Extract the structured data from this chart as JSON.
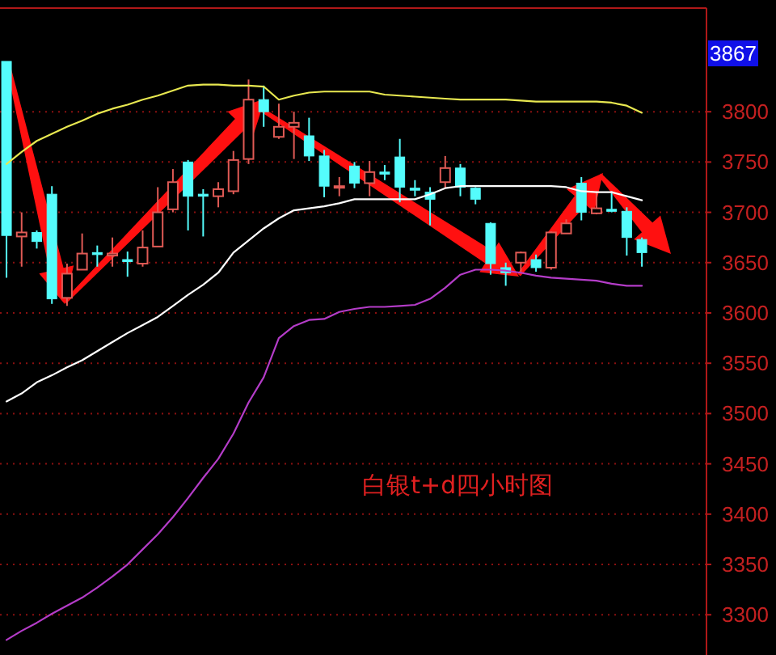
{
  "chart_data": {
    "type": "candlestick",
    "title": "白银t+d四小时图",
    "categories": [
      null,
      null,
      null,
      null,
      null,
      null,
      null,
      null,
      null,
      null,
      null,
      null,
      null,
      null,
      null,
      null,
      null,
      null,
      null,
      null,
      null,
      null,
      null,
      null,
      null,
      null,
      null,
      null,
      null,
      null,
      null,
      null,
      null,
      null,
      null,
      null,
      null,
      null,
      null,
      null,
      null,
      null,
      null
    ],
    "ohlc": [
      [
        3850,
        3850,
        3635,
        3677
      ],
      [
        3676,
        3700,
        3646,
        3680
      ],
      [
        3680,
        3682,
        3664,
        3671
      ],
      [
        3718,
        3726,
        3609,
        3614
      ],
      [
        3615,
        3649,
        3607,
        3639
      ],
      [
        3643,
        3679,
        3643,
        3659
      ],
      [
        3660,
        3667,
        3646,
        3658
      ],
      [
        3657,
        3675,
        3646,
        3659
      ],
      [
        3653,
        3661,
        3636,
        3651
      ],
      [
        3649,
        3682,
        3646,
        3665
      ],
      [
        3666,
        3725,
        3666,
        3700
      ],
      [
        3703,
        3743,
        3700,
        3730
      ],
      [
        3750,
        3752,
        3682,
        3716
      ],
      [
        3718,
        3723,
        3676,
        3716
      ],
      [
        3716,
        3730,
        3705,
        3723
      ],
      [
        3721,
        3761,
        3718,
        3752
      ],
      [
        3753,
        3832,
        3748,
        3812
      ],
      [
        3812,
        3826,
        3785,
        3800
      ],
      [
        3775,
        3808,
        3773,
        3785
      ],
      [
        3785,
        3800,
        3753,
        3789
      ],
      [
        3776,
        3794,
        3751,
        3756
      ],
      [
        3756,
        3762,
        3715,
        3726
      ],
      [
        3725,
        3735,
        3716,
        3726
      ],
      [
        3746,
        3750,
        3724,
        3729
      ],
      [
        3729,
        3751,
        3716,
        3740
      ],
      [
        3740,
        3747,
        3732,
        3738
      ],
      [
        3755,
        3773,
        3710,
        3725
      ],
      [
        3724,
        3732,
        3716,
        3722
      ],
      [
        3720,
        3725,
        3687,
        3713
      ],
      [
        3730,
        3756,
        3724,
        3744
      ],
      [
        3744,
        3748,
        3716,
        3725
      ],
      [
        3724,
        3725,
        3708,
        3713
      ],
      [
        3689,
        3690,
        3638,
        3649
      ],
      [
        3645,
        3650,
        3627,
        3640
      ],
      [
        3650,
        3661,
        3641,
        3660
      ],
      [
        3653,
        3658,
        3641,
        3645
      ],
      [
        3645,
        3681,
        3643,
        3680
      ],
      [
        3679,
        3693,
        3679,
        3689
      ],
      [
        3729,
        3735,
        3692,
        3700
      ],
      [
        3699,
        3721,
        3698,
        3704
      ],
      [
        3703,
        3721,
        3700,
        3701
      ],
      [
        3701,
        3705,
        3657,
        3675
      ],
      [
        3673,
        3675,
        3646,
        3660
      ]
    ],
    "colors": [
      "#54fcfc",
      "#e05a55",
      "#54fcfc",
      "#54fcfc",
      "#e05a55",
      "#e05a55",
      "#54fcfc",
      "#e05a55",
      "#54fcfc",
      "#e05a55",
      "#e05a55",
      "#e05a55",
      "#54fcfc",
      "#54fcfc",
      "#e05a55",
      "#e05a55",
      "#e05a55",
      "#54fcfc",
      "#e05a55",
      "#e05a55",
      "#54fcfc",
      "#54fcfc",
      "#e05a55",
      "#54fcfc",
      "#e05a55",
      "#54fcfc",
      "#54fcfc",
      "#54fcfc",
      "#54fcfc",
      "#e05a55",
      "#54fcfc",
      "#54fcfc",
      "#54fcfc",
      "#54fcfc",
      "#e05a55",
      "#54fcfc",
      "#e05a55",
      "#e05a55",
      "#54fcfc",
      "#e05a55",
      "#54fcfc",
      "#54fcfc",
      "#54fcfc"
    ],
    "series": [
      {
        "type": "line",
        "color": "#e8e850",
        "values": [
          3748,
          3760,
          3771,
          3778,
          3785,
          3791,
          3798,
          3803,
          3807,
          3812,
          3816,
          3821,
          3826,
          3827,
          3827,
          3826,
          3826,
          3825,
          3812,
          3816,
          3819,
          3820,
          3820,
          3820,
          3820,
          3817,
          3816,
          3815,
          3814,
          3813,
          3812,
          3812,
          3812,
          3812,
          3811,
          3810,
          3810,
          3810,
          3810,
          3810,
          3809,
          3806,
          3799
        ]
      },
      {
        "type": "line",
        "color": "#ffffff",
        "values": [
          3512,
          3520,
          3531,
          3538,
          3546,
          3553,
          3562,
          3571,
          3580,
          3588,
          3596,
          3607,
          3618,
          3628,
          3640,
          3660,
          3672,
          3684,
          3694,
          3702,
          3704,
          3706,
          3709,
          3713,
          3713,
          3713,
          3713,
          3713,
          3718,
          3724,
          3726,
          3726,
          3726,
          3726,
          3726,
          3726,
          3726,
          3725,
          3721,
          3720,
          3720,
          3716,
          3712
        ]
      },
      {
        "type": "line",
        "color": "#b43cc8",
        "values": [
          3275,
          3284,
          3292,
          3301,
          3309,
          3317,
          3327,
          3338,
          3350,
          3365,
          3380,
          3397,
          3416,
          3436,
          3455,
          3480,
          3511,
          3536,
          3575,
          3587,
          3593,
          3594,
          3601,
          3604,
          3606,
          3606,
          3607,
          3608,
          3614,
          3625,
          3638,
          3643,
          3643,
          3642,
          3640,
          3637,
          3635,
          3634,
          3633,
          3632,
          3629,
          3627,
          3627
        ]
      }
    ],
    "ylim": [
      3260,
      3903
    ],
    "yticks": [
      3300,
      3350,
      3400,
      3450,
      3500,
      3550,
      3600,
      3650,
      3700,
      3750,
      3800
    ],
    "grid": "y",
    "tick_labels": "y",
    "annotations": [
      "3867"
    ]
  }
}
